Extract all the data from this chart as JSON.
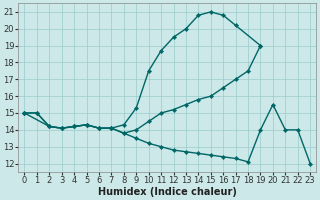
{
  "xlabel": "Humidex (Indice chaleur)",
  "bg_color": "#cce8e8",
  "grid_color": "#99cccc",
  "line_color": "#006666",
  "xlim": [
    -0.5,
    23.5
  ],
  "ylim": [
    11.5,
    21.5
  ],
  "xticks": [
    0,
    1,
    2,
    3,
    4,
    5,
    6,
    7,
    8,
    9,
    10,
    11,
    12,
    13,
    14,
    15,
    16,
    17,
    18,
    19,
    20,
    21,
    22,
    23
  ],
  "yticks": [
    12,
    13,
    14,
    15,
    16,
    17,
    18,
    19,
    20,
    21
  ],
  "line1_x": [
    0,
    1,
    2,
    3,
    4,
    5,
    6,
    7,
    8,
    9,
    10,
    11,
    12,
    13,
    14,
    15,
    16,
    17,
    19
  ],
  "line1_y": [
    15,
    15,
    14.2,
    14.1,
    14.2,
    14.3,
    14.1,
    14.1,
    14.3,
    15.3,
    17.5,
    18.7,
    19.5,
    20.0,
    20.8,
    21.0,
    20.8,
    20.2,
    19.0
  ],
  "line2_x": [
    0,
    2,
    3,
    4,
    5,
    6,
    7,
    8,
    9,
    10,
    11,
    12,
    13,
    14,
    15,
    16,
    17,
    18,
    19
  ],
  "line2_y": [
    15,
    14.2,
    14.1,
    14.2,
    14.3,
    14.1,
    14.1,
    13.8,
    14.0,
    14.5,
    15.0,
    15.2,
    15.5,
    15.8,
    16.0,
    16.5,
    17.0,
    17.5,
    19.0
  ],
  "line3_x": [
    0,
    1,
    2,
    3,
    4,
    5,
    6,
    7,
    8,
    9,
    10,
    11,
    12,
    13,
    14,
    15,
    16,
    17,
    18,
    19,
    20,
    21,
    22,
    23
  ],
  "line3_y": [
    15,
    15,
    14.2,
    14.1,
    14.2,
    14.3,
    14.1,
    14.1,
    13.8,
    13.5,
    13.2,
    13.0,
    12.8,
    12.7,
    12.6,
    12.5,
    12.4,
    12.3,
    12.1,
    14.0,
    15.5,
    14.0,
    14.0,
    12.0
  ],
  "marker": "D",
  "marker_size": 2.2,
  "line_width": 1.0,
  "font_size_tick": 6.0,
  "font_size_label": 7.0
}
